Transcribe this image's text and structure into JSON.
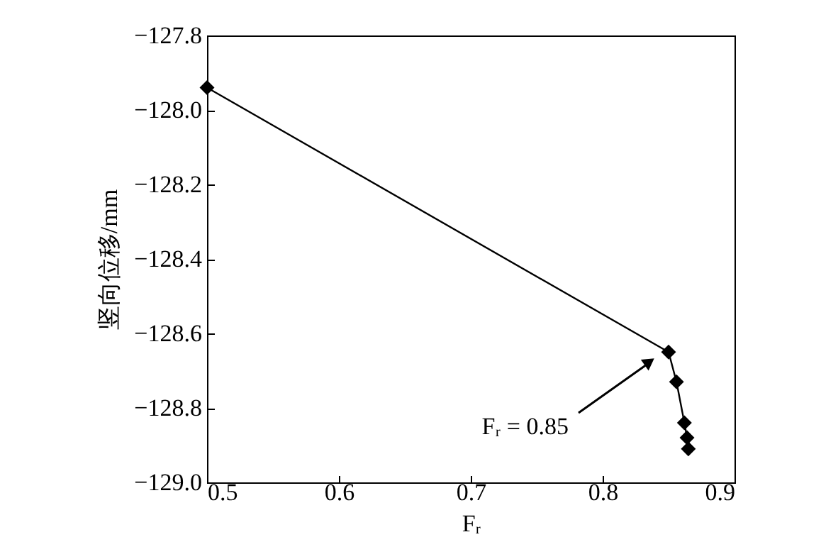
{
  "chart_data": {
    "type": "line",
    "xlabel": "Fᵣ",
    "ylabel": "竖向位移/mm",
    "x": [
      0.5,
      0.85,
      0.856,
      0.862,
      0.864,
      0.865
    ],
    "series": [
      {
        "color": "#000000",
        "values": [
          -127.94,
          -128.65,
          -128.73,
          -128.84,
          -128.88,
          -128.91
        ]
      }
    ],
    "xlim": [
      0.5,
      0.9
    ],
    "xticks": [
      0.5,
      0.6,
      0.7,
      0.8,
      0.9
    ],
    "ylim": [
      -129.0,
      -127.8
    ],
    "yticks": [
      {
        "value": -129.0,
        "label": "−129.0"
      },
      {
        "value": -128.8,
        "label": "−128.8"
      },
      {
        "value": -128.6,
        "label": "−128.6"
      },
      {
        "value": -128.4,
        "label": "−128.4"
      },
      {
        "value": -128.2,
        "label": "−128.2"
      },
      {
        "value": -128.0,
        "label": "−128.0"
      },
      {
        "value": -127.8,
        "label": "−127.8"
      }
    ],
    "marker": "diamond",
    "grid": false,
    "legend": false,
    "annotations": [
      "Fᵣ = 0.85"
    ]
  }
}
